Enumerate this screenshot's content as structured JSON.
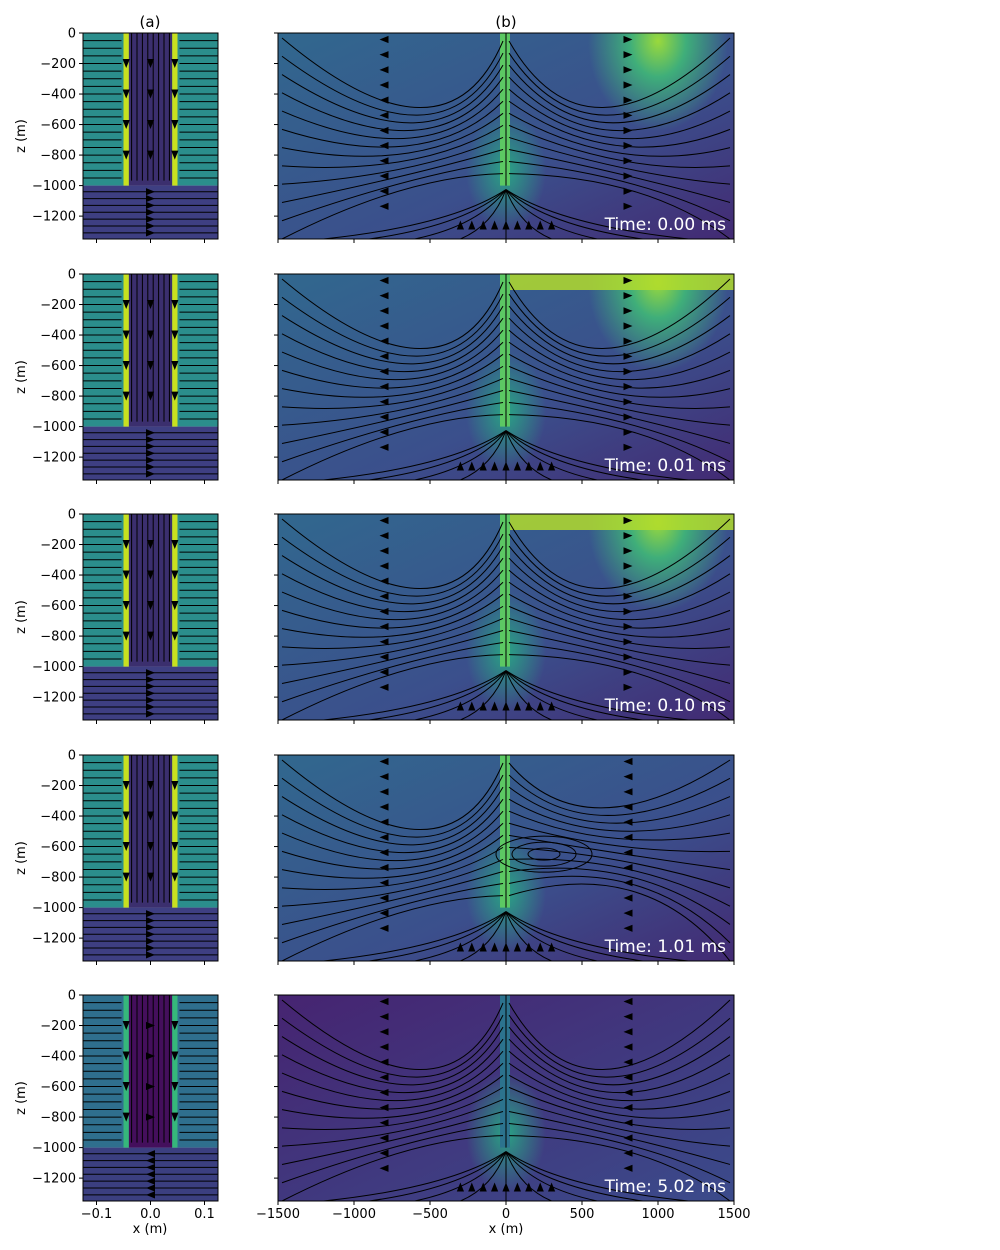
{
  "chart_data": {
    "type": "streamplot-grid",
    "column_titles": [
      "(a)",
      "(b)"
    ],
    "zlabel": "z (m)",
    "xlabel": "x (m)",
    "ylim": [
      -1350,
      0
    ],
    "yticks": [
      0,
      -200,
      -400,
      -600,
      -800,
      -1000,
      -1200
    ],
    "left_xlim": [
      -0.125,
      0.125
    ],
    "left_xticks": [
      -0.1,
      0.0,
      0.1
    ],
    "left_xtick_labels": [
      "−0.1",
      "0.0",
      "0.1"
    ],
    "right_xlim": [
      -1500,
      1500
    ],
    "right_xticks": [
      -1500,
      -1000,
      -500,
      0,
      500,
      1000,
      1500
    ],
    "right_xtick_labels": [
      "−1500",
      "−1000",
      "−500",
      "0",
      "500",
      "1000",
      "1500"
    ],
    "casing": {
      "inner_half_width_m": 0.04,
      "outer_half_width_m": 0.05,
      "bottom_depth_m": -1000
    },
    "panels": [
      {
        "time_label": "Time: 0.00 ms",
        "time_ms": 0.0
      },
      {
        "time_label": "Time: 0.01 ms",
        "time_ms": 0.01
      },
      {
        "time_label": "Time: 0.10 ms",
        "time_ms": 0.1
      },
      {
        "time_label": "Time: 1.01 ms",
        "time_ms": 1.01
      },
      {
        "time_label": "Time: 5.02 ms",
        "time_ms": 5.02
      }
    ],
    "colors": {
      "background_outer": "#2b8e8c",
      "background_inner": "#3b2f6e",
      "casing": "#c8e020",
      "deep": "#3b3f80",
      "dark": "#440f5c",
      "streamline": "#000000",
      "time_label": "#ffffff"
    }
  }
}
